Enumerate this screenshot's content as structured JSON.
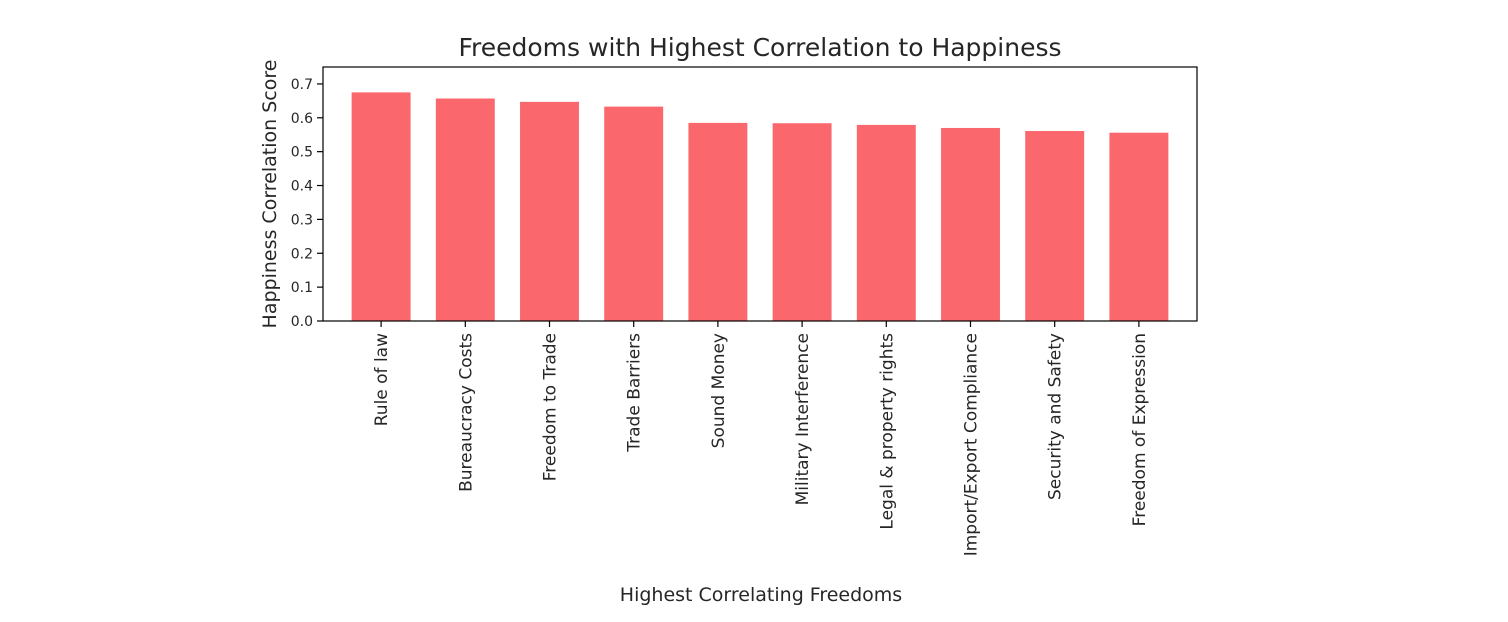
{
  "chart_data": {
    "type": "bar",
    "title": "Freedoms with Highest Correlation to Happiness",
    "xlabel": "Highest Correlating Freedoms",
    "ylabel": "Happiness Correlation Score",
    "categories": [
      "Rule of law",
      "Bureaucracy Costs",
      "Freedom to Trade",
      "Trade Barriers",
      "Sound Money",
      "Military Interference",
      "Legal & property rights",
      "Import/Export Compliance",
      "Security and Safety",
      "Freedom of Expression"
    ],
    "values": [
      0.675,
      0.657,
      0.647,
      0.633,
      0.585,
      0.584,
      0.579,
      0.57,
      0.561,
      0.556
    ],
    "ylim": [
      0,
      0.75
    ],
    "yticks": [
      0.0,
      0.1,
      0.2,
      0.3,
      0.4,
      0.5,
      0.6,
      0.7
    ],
    "ytick_labels": [
      "0.0",
      "0.1",
      "0.2",
      "0.3",
      "0.4",
      "0.5",
      "0.6",
      "0.7"
    ],
    "bar_color": "#fa686d",
    "grid": false,
    "legend": null
  }
}
